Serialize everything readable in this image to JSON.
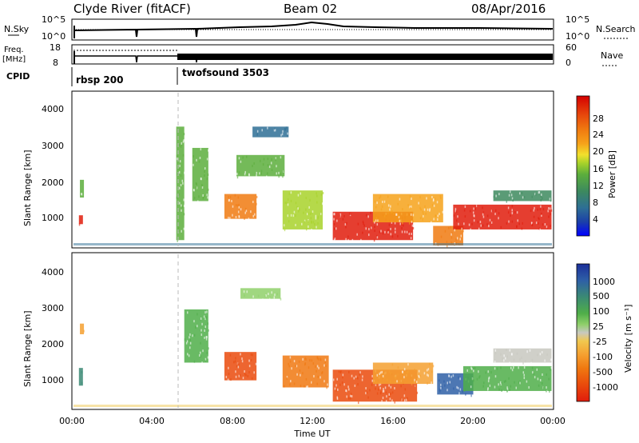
{
  "header": {
    "station": "Clyde River (fitACF)",
    "beam": "Beam 02",
    "date": "08/Apr/2016"
  },
  "top_panels": {
    "nsky_label": "N.Sky",
    "nsky_ticks": [
      "10^5",
      "10^0"
    ],
    "nsearch_label": "N.Search",
    "nsearch_ticks": [
      "10^5",
      "10^0"
    ],
    "freq_label": "Freq.",
    "freq_unit": "[MHz]",
    "freq_ticks": [
      "18",
      "8"
    ],
    "nave_label": "Nave",
    "nave_ticks": [
      "60",
      "0"
    ],
    "cpid_label": "CPID",
    "cpid_segments": [
      "rbsp 200",
      "twofsound 3503"
    ]
  },
  "colorbars": {
    "power": {
      "title": "Power [dB]",
      "ticks": [
        "28",
        "24",
        "20",
        "16",
        "12",
        "8",
        "4"
      ],
      "colors": [
        "#0000ff",
        "#1b3fa8",
        "#2e6f95",
        "#3d8a5e",
        "#5cae3c",
        "#a8d22a",
        "#f2e02c",
        "#f6a21a",
        "#f07a10",
        "#e84a0c",
        "#e01c0c",
        "#d40000"
      ]
    },
    "velocity": {
      "title": "Velocity [m s⁻¹]",
      "ticks": [
        "1000",
        "500",
        "100",
        "25",
        "-25",
        "-100",
        "-500",
        "-1000"
      ],
      "colors": [
        "#1b2f9a",
        "#2e5fa6",
        "#3b8a74",
        "#4fae49",
        "#8fd06a",
        "#c8c8c0",
        "#f0c850",
        "#f5a030",
        "#f07810",
        "#ea4a0c",
        "#e01c0c"
      ]
    }
  },
  "axes": {
    "ylabel": "Slant Range [km]",
    "xlabel": "Time UT",
    "x_ticks": [
      "00:00",
      "04:00",
      "08:00",
      "12:00",
      "16:00",
      "20:00",
      "00:00"
    ],
    "y_ticks": [
      "4000",
      "3000",
      "2000",
      "1000"
    ]
  },
  "chart_data": [
    {
      "type": "heatmap",
      "title": "",
      "xlabel": "",
      "ylabel": "Slant Range [km]",
      "x_unit": "hours UT",
      "xlim": [
        0,
        24
      ],
      "ylim": [
        180,
        4600
      ],
      "colorbar": "Power [dB]",
      "colorbar_range": [
        0,
        30
      ],
      "echo_regions": [
        {
          "t": [
            0.35,
            0.55
          ],
          "range": [
            850,
            1100
          ],
          "value": 26
        },
        {
          "t": [
            0.4,
            0.6
          ],
          "range": [
            1600,
            2100
          ],
          "value": 10
        },
        {
          "t": [
            5.2,
            5.6
          ],
          "range": [
            400,
            3600
          ],
          "value": 10
        },
        {
          "t": [
            6.0,
            6.8
          ],
          "range": [
            1500,
            3000
          ],
          "value": 10
        },
        {
          "t": [
            7.6,
            9.2
          ],
          "range": [
            1000,
            1700
          ],
          "value": 22
        },
        {
          "t": [
            9.0,
            10.8
          ],
          "range": [
            3300,
            3600
          ],
          "value": 6
        },
        {
          "t": [
            8.2,
            10.6
          ],
          "range": [
            2200,
            2800
          ],
          "value": 10
        },
        {
          "t": [
            10.5,
            12.5
          ],
          "range": [
            700,
            1800
          ],
          "value": 14
        },
        {
          "t": [
            13.0,
            17.0
          ],
          "range": [
            400,
            1200
          ],
          "value": 26
        },
        {
          "t": [
            15.0,
            18.5
          ],
          "range": [
            900,
            1700
          ],
          "value": 18
        },
        {
          "t": [
            18.0,
            19.5
          ],
          "range": [
            250,
            800
          ],
          "value": 22
        },
        {
          "t": [
            19.0,
            23.9
          ],
          "range": [
            700,
            1400
          ],
          "value": 26
        },
        {
          "t": [
            21.0,
            23.9
          ],
          "range": [
            1500,
            1800
          ],
          "value": 8
        }
      ]
    },
    {
      "type": "heatmap",
      "title": "",
      "xlabel": "Time UT",
      "ylabel": "Slant Range [km]",
      "x_unit": "hours UT",
      "xlim": [
        0,
        24
      ],
      "ylim": [
        180,
        4600
      ],
      "colorbar": "Velocity [m s⁻¹]",
      "colorbar_ticks": [
        1000,
        500,
        100,
        25,
        -25,
        -100,
        -500,
        -1000
      ],
      "echo_regions": [
        {
          "t": [
            0.35,
            0.55
          ],
          "range": [
            850,
            1350
          ],
          "value": 200
        },
        {
          "t": [
            0.4,
            0.6
          ],
          "range": [
            2300,
            2600
          ],
          "value": -100
        },
        {
          "t": [
            5.6,
            6.8
          ],
          "range": [
            1500,
            3000
          ],
          "value": 100
        },
        {
          "t": [
            7.6,
            9.2
          ],
          "range": [
            1000,
            1800
          ],
          "value": -400
        },
        {
          "t": [
            8.4,
            10.4
          ],
          "range": [
            3300,
            3600
          ],
          "value": 25
        },
        {
          "t": [
            10.5,
            12.8
          ],
          "range": [
            800,
            1700
          ],
          "value": -200
        },
        {
          "t": [
            13.0,
            17.2
          ],
          "range": [
            400,
            1300
          ],
          "value": -500
        },
        {
          "t": [
            15.0,
            18.0
          ],
          "range": [
            900,
            1500
          ],
          "value": -150
        },
        {
          "t": [
            18.2,
            20.0
          ],
          "range": [
            600,
            1200
          ],
          "value": 500
        },
        {
          "t": [
            19.5,
            23.9
          ],
          "range": [
            700,
            1400
          ],
          "value": 150
        },
        {
          "t": [
            21.0,
            23.9
          ],
          "range": [
            1500,
            1900
          ],
          "value": 0
        }
      ]
    }
  ]
}
